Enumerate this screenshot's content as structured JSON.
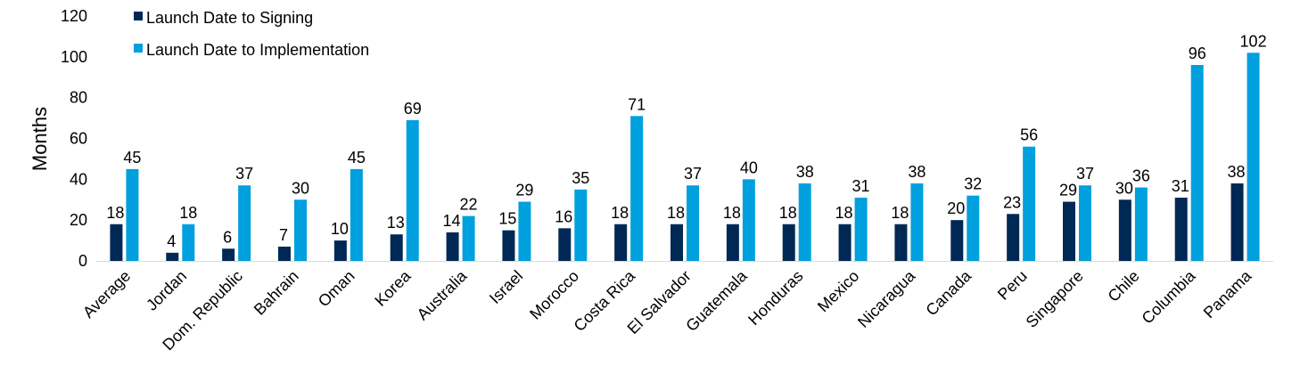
{
  "chart_data": {
    "type": "bar",
    "title": "",
    "xlabel": "",
    "ylabel": "Months",
    "ylim": [
      0,
      120
    ],
    "yticks": [
      0,
      20,
      40,
      60,
      80,
      100,
      120
    ],
    "grid": false,
    "legend_position": "top-left",
    "categories": [
      "Average",
      "Jordan",
      "Dom. Republic",
      "Bahrain",
      "Oman",
      "Korea",
      "Australia",
      "Israel",
      "Morocco",
      "Costa Rica",
      "El Salvador",
      "Guatemala",
      "Honduras",
      "Mexico",
      "Nicaragua",
      "Canada",
      "Peru",
      "Singapore",
      "Chile",
      "Columbia",
      "Panama"
    ],
    "series": [
      {
        "name": "Launch Date to Signing",
        "color": "#002855",
        "values": [
          18,
          4,
          6,
          7,
          10,
          13,
          14,
          15,
          16,
          18,
          18,
          18,
          18,
          18,
          18,
          20,
          23,
          29,
          30,
          31,
          38
        ]
      },
      {
        "name": "Launch Date to Implementation",
        "color": "#00A0DF",
        "values": [
          45,
          18,
          37,
          30,
          45,
          69,
          22,
          29,
          35,
          71,
          37,
          40,
          38,
          31,
          38,
          32,
          56,
          37,
          36,
          96,
          102
        ]
      }
    ],
    "axis_color": "#D9D9D9"
  }
}
